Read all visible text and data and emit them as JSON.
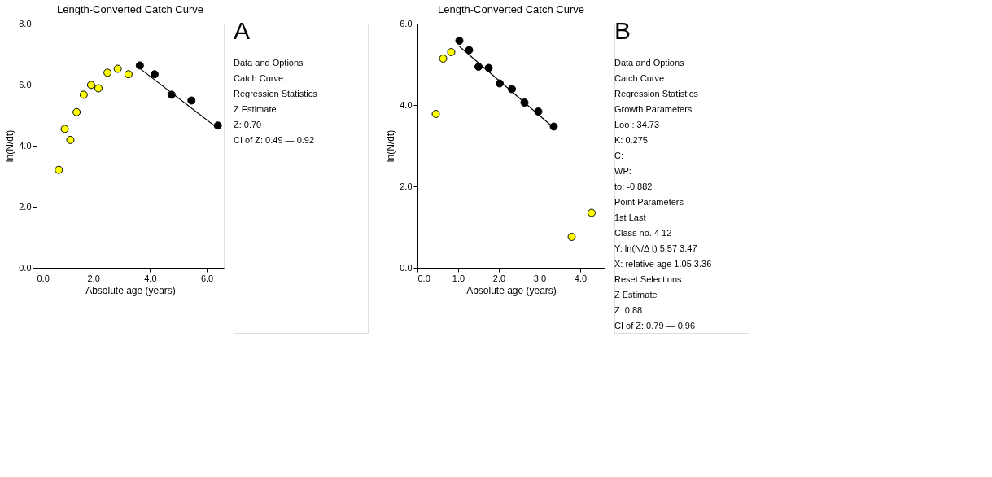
{
  "chart_data": [
    {
      "type": "scatter",
      "title": "Length-Converted Catch Curve",
      "xlabel": "Absolute age (years)",
      "ylabel": "ln(N/dt)",
      "grid": false,
      "xlim": [
        0,
        6.6
      ],
      "ylim": [
        0,
        8
      ],
      "xticks": [
        {
          "value": 0,
          "label": "0.0"
        },
        {
          "value": 2,
          "label": "2.0"
        },
        {
          "value": 4,
          "label": "4.0"
        },
        {
          "value": 6,
          "label": "6.0"
        }
      ],
      "yticks": [
        {
          "value": 0,
          "label": "0.0"
        },
        {
          "value": 2,
          "label": "2.0"
        },
        {
          "value": 4,
          "label": "4.0"
        },
        {
          "value": 6,
          "label": "6.0"
        },
        {
          "value": 8,
          "label": "8.0"
        }
      ],
      "series": [
        {
          "type": "scatter",
          "marker": "circle",
          "color": "#ffff00",
          "x": [
            0.78,
            0.99,
            1.19,
            1.41,
            1.66,
            1.92,
            2.18,
            2.5,
            2.86,
            3.24
          ],
          "values": [
            3.21,
            4.55,
            4.19,
            5.1,
            5.67,
            5.99,
            5.88,
            6.39,
            6.52,
            6.34
          ]
        },
        {
          "type": "scatter",
          "marker": "circle",
          "color": "#000000",
          "x": [
            3.64,
            4.16,
            4.76,
            5.46,
            6.39
          ],
          "values": [
            6.63,
            6.34,
            5.67,
            5.48,
            4.66
          ]
        },
        {
          "type": "line",
          "color": "#000000",
          "x": [
            3.64,
            6.39
          ],
          "values": [
            6.53,
            4.57
          ]
        }
      ],
      "annotations": [
        "A",
        "Data and Options",
        "Catch Curve",
        "Regression Statistics",
        "Z Estimate",
        "Z: 0.70",
        "CI of Z: 0.49 — 0.92"
      ]
    },
    {
      "type": "scatter",
      "title": "Length-Converted Catch Curve",
      "xlabel": "Absolute age (years)",
      "ylabel": "ln(N/dt)",
      "grid": false,
      "xlim": [
        0,
        4.6
      ],
      "ylim": [
        0,
        6
      ],
      "xticks": [
        {
          "value": 0,
          "label": "0.0"
        },
        {
          "value": 1,
          "label": "1.0"
        },
        {
          "value": 2,
          "label": "2.0"
        },
        {
          "value": 3,
          "label": "3.0"
        },
        {
          "value": 4,
          "label": "4.0"
        }
      ],
      "yticks": [
        {
          "value": 0,
          "label": "0.0"
        },
        {
          "value": 2,
          "label": "2.0"
        },
        {
          "value": 4,
          "label": "4.0"
        },
        {
          "value": 6,
          "label": "6.0"
        }
      ],
      "series": [
        {
          "type": "scatter",
          "marker": "circle",
          "color": "#ffff00",
          "x": [
            0.45,
            0.63,
            0.83,
            3.79,
            4.28
          ],
          "values": [
            3.78,
            5.14,
            5.3,
            0.76,
            1.35
          ]
        },
        {
          "type": "scatter",
          "marker": "circle",
          "color": "#000000",
          "x": [
            1.03,
            1.27,
            1.5,
            1.75,
            2.02,
            2.32,
            2.63,
            2.97,
            3.35
          ],
          "values": [
            5.58,
            5.35,
            4.94,
            4.91,
            4.53,
            4.39,
            4.06,
            3.84,
            3.47
          ]
        },
        {
          "type": "line",
          "color": "#000000",
          "x": [
            1.03,
            3.35
          ],
          "values": [
            5.44,
            3.44
          ]
        }
      ],
      "annotations": [
        "B",
        "Data and Options",
        "Catch Curve",
        "Regression Statistics",
        "Growth Parameters",
        "Loo : 34.73",
        "K: 0.275",
        "C:",
        "WP:",
        "to: -0.882",
        "Point Parameters",
        "1st   Last",
        "Class no.  4   12",
        "Y: ln(N/Δ t)  5.57   3.47",
        "X: relative age  1.05   3.36",
        "Reset Selections",
        "Z Estimate",
        "Z: 0.88",
        "CI of Z: 0.79 — 0.96"
      ]
    }
  ]
}
